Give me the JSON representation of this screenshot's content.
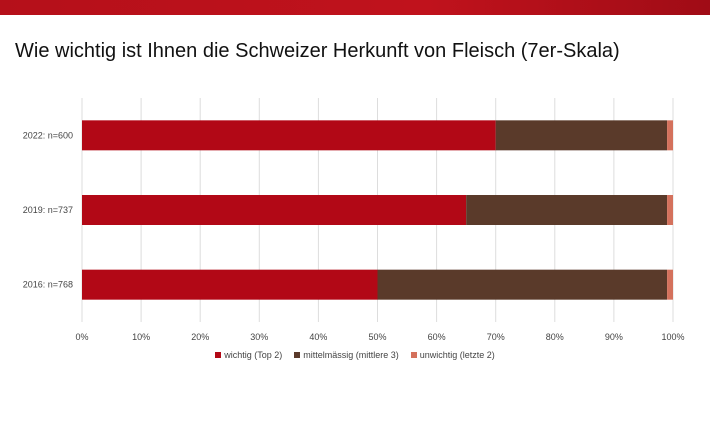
{
  "header": {
    "title": "Wie wichtig ist Ihnen die Schweizer Herkunft von Fleisch (7er-Skala)"
  },
  "colors": {
    "top_bar": "#b5101a",
    "wichtig": "#b20816",
    "mittel": "#5a3a2a",
    "unwichtig": "#d4715c"
  },
  "chart_data": {
    "type": "bar",
    "orientation": "horizontal",
    "stacked": true,
    "title": "Wie wichtig ist Ihnen die Schweizer Herkunft von Fleisch (7er-Skala)",
    "categories": [
      "2022: n=600",
      "2019: n=737",
      "2016: n=768"
    ],
    "series": [
      {
        "name": "wichtig (Top 2)",
        "values": [
          70,
          65,
          50
        ]
      },
      {
        "name": "mittelmässig (mittlere 3)",
        "values": [
          29,
          34,
          49
        ]
      },
      {
        "name": "unwichtig (letzte 2)",
        "values": [
          1,
          1,
          1
        ]
      }
    ],
    "xlim": [
      0,
      100
    ],
    "x_ticks": [
      "0%",
      "10%",
      "20%",
      "30%",
      "40%",
      "50%",
      "60%",
      "70%",
      "80%",
      "90%",
      "100%"
    ],
    "grid": true,
    "legend_position": "bottom"
  }
}
